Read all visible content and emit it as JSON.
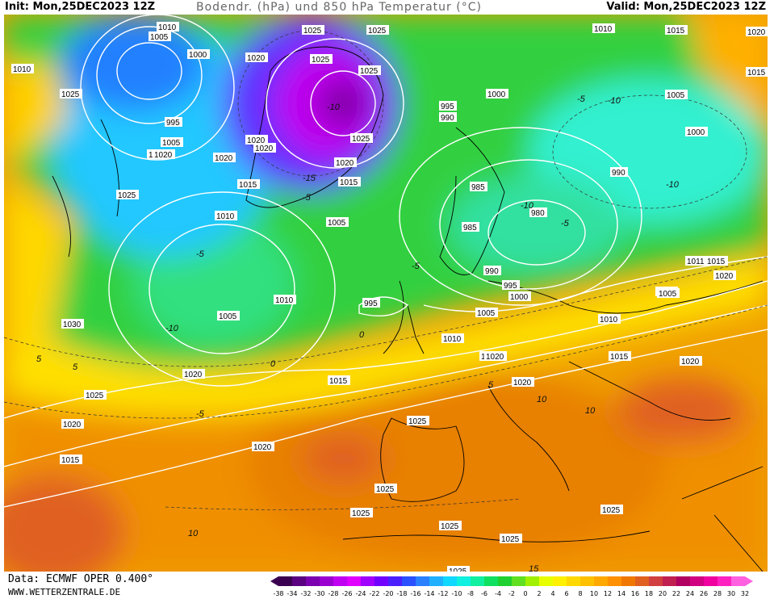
{
  "header": {
    "init": "Init: Mon,25DEC2023 12Z",
    "title": "Bodendr. (hPa) und 850 hPa Temperatur (°C)",
    "valid": "Valid: Mon,25DEC2023 12Z"
  },
  "footer": {
    "source": "Data: ECMWF OPER 0.400°",
    "url": "WWW.WETTERZENTRALE.DE"
  },
  "colorbar": {
    "ticks": [
      "-38",
      "-34",
      "-32",
      "-30",
      "-28",
      "-26",
      "-24",
      "-22",
      "-20",
      "-18",
      "-16",
      "-14",
      "-12",
      "-10",
      "-8",
      "-6",
      "-4",
      "-2",
      "0",
      "2",
      "4",
      "6",
      "8",
      "10",
      "12",
      "14",
      "16",
      "18",
      "20",
      "22",
      "24",
      "26",
      "28",
      "30",
      "32"
    ],
    "colors": [
      "#3a0050",
      "#5a0080",
      "#7a00b0",
      "#9a00d0",
      "#c000f0",
      "#e000ff",
      "#a000ff",
      "#7000ff",
      "#4a20ff",
      "#2a50ff",
      "#2a80ff",
      "#20b0ff",
      "#10d8ff",
      "#10f0e0",
      "#10f0a0",
      "#10e060",
      "#20d030",
      "#60e020",
      "#a0f000",
      "#e8ff00",
      "#fff000",
      "#ffd800",
      "#ffc000",
      "#ffa800",
      "#ff9000",
      "#f07800",
      "#e06020",
      "#d04040",
      "#c02050",
      "#b00060",
      "#d00080",
      "#f000a0",
      "#ff20c0",
      "#ff60e0"
    ]
  },
  "pressure_labels": [
    {
      "t": "1010"
    },
    {
      "t": "1005"
    },
    {
      "t": "1000"
    },
    {
      "t": "1025"
    },
    {
      "t": "1025"
    },
    {
      "t": "1020"
    },
    {
      "t": "1025"
    },
    {
      "t": "1025"
    },
    {
      "t": "1010"
    },
    {
      "t": "1015"
    },
    {
      "t": "1020"
    },
    {
      "t": "1015"
    },
    {
      "t": "995"
    },
    {
      "t": "1005"
    },
    {
      "t": "1010"
    },
    {
      "t": "1020"
    },
    {
      "t": "1020"
    },
    {
      "t": "1025"
    },
    {
      "t": "1020"
    },
    {
      "t": "1015"
    },
    {
      "t": "1005"
    },
    {
      "t": "1000"
    },
    {
      "t": "995"
    },
    {
      "t": "990"
    },
    {
      "t": "1005"
    },
    {
      "t": "1000"
    },
    {
      "t": "990"
    },
    {
      "t": "985"
    },
    {
      "t": "985"
    },
    {
      "t": "980"
    },
    {
      "t": "990"
    },
    {
      "t": "995"
    },
    {
      "t": "1000"
    },
    {
      "t": "1005"
    },
    {
      "t": "1010"
    },
    {
      "t": "1015"
    },
    {
      "t": "1020"
    },
    {
      "t": "1025"
    },
    {
      "t": "1030"
    },
    {
      "t": "1005"
    },
    {
      "t": "995"
    },
    {
      "t": "1010"
    },
    {
      "t": "1020"
    },
    {
      "t": "1025"
    },
    {
      "t": "1020"
    },
    {
      "t": "1015"
    },
    {
      "t": "1005"
    },
    {
      "t": "1010"
    },
    {
      "t": "1015"
    },
    {
      "t": "1020"
    },
    {
      "t": "1020"
    },
    {
      "t": "1025"
    },
    {
      "t": "1020"
    },
    {
      "t": "1025"
    },
    {
      "t": "1025"
    },
    {
      "t": "1025"
    },
    {
      "t": "1025"
    },
    {
      "t": "1025"
    },
    {
      "t": "1025"
    },
    {
      "t": "1015"
    },
    {
      "t": "1011"
    },
    {
      "t": "1015"
    },
    {
      "t": "1020"
    },
    {
      "t": "1005"
    },
    {
      "t": "1010"
    },
    {
      "t": "1020"
    },
    {
      "t": "1015"
    },
    {
      "t": "1025"
    },
    {
      "t": "1010"
    },
    {
      "t": "1020"
    }
  ],
  "temp_labels": [
    "-5",
    "-10",
    "-15",
    "-5",
    "-10",
    "-10",
    "-5",
    "-10",
    "-5",
    "-5",
    "-5",
    "0",
    "5",
    "5",
    "10",
    "10",
    "15",
    "5",
    "10",
    "-10",
    "0"
  ]
}
